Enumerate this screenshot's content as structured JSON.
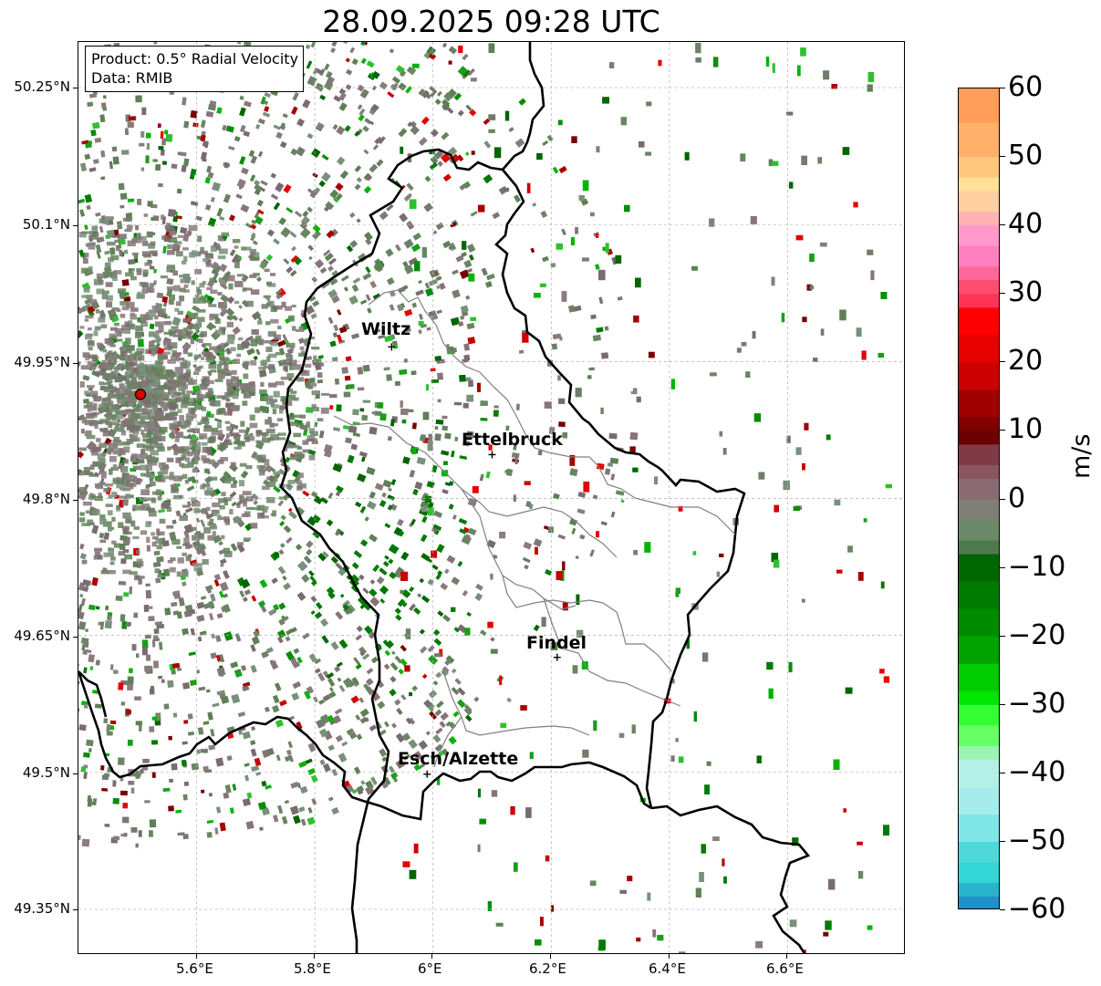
{
  "title": "28.09.2025 09:28 UTC",
  "info_box": {
    "product": "Product: 0.5° Radial Velocity",
    "source": "Data: RMIB"
  },
  "axes": {
    "x_ticks": [
      "5.6°E",
      "5.8°E",
      "6°E",
      "6.2°E",
      "6.4°E",
      "6.6°E"
    ],
    "y_ticks": [
      "50.25°N",
      "50.1°N",
      "49.95°N",
      "49.8°N",
      "49.65°N",
      "49.5°N",
      "49.35°N"
    ]
  },
  "map_data": {
    "lon_range": [
      5.4,
      6.8
    ],
    "lat_range": [
      49.3,
      50.3
    ],
    "grid": true,
    "radar_site": {
      "lon": 5.505,
      "lat": 49.914,
      "color": "#e00000"
    },
    "cities": [
      {
        "name": "Wiltz",
        "lon": 5.93,
        "lat": 49.966
      },
      {
        "name": "Ettelbruck",
        "lon": 6.1,
        "lat": 49.848
      },
      {
        "name": "Findel",
        "lon": 6.21,
        "lat": 49.626
      },
      {
        "name": "Esch/Alzette",
        "lon": 5.99,
        "lat": 49.498
      }
    ]
  },
  "colorbar": {
    "label": "m/s",
    "min": -60,
    "max": 60,
    "ticks": [
      "60",
      "50",
      "40",
      "30",
      "20",
      "10",
      "0",
      "−10",
      "−20",
      "−30",
      "−40",
      "−50",
      "−60"
    ]
  }
}
